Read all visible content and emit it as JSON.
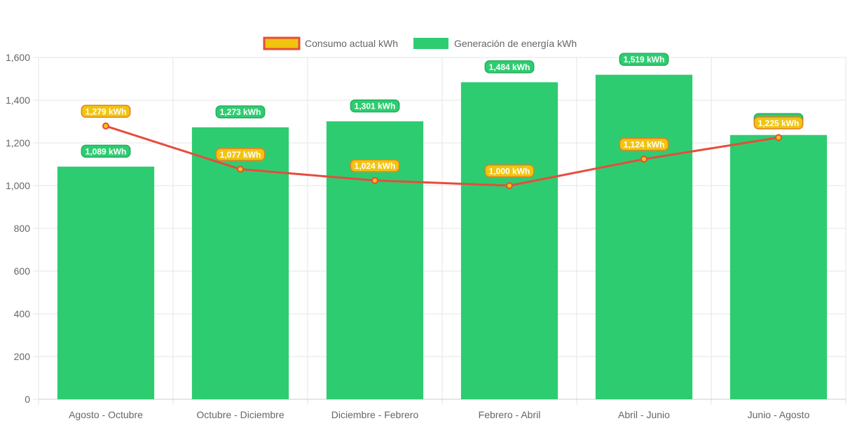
{
  "chart_data": {
    "type": "bar",
    "categories": [
      "Agosto - Octubre",
      "Octubre - Diciembre",
      "Diciembre - Febrero",
      "Febrero - Abril",
      "Abril - Junio",
      "Junio - Agosto"
    ],
    "series": [
      {
        "name": "Consumo actual kWh",
        "type": "line",
        "values": [
          1279,
          1077,
          1024,
          1000,
          1124,
          1225
        ],
        "color": "#e74c3c",
        "marker_fill": "#f1c40f"
      },
      {
        "name": "Generación de energía kWh",
        "type": "bar",
        "values": [
          1089,
          1273,
          1301,
          1484,
          1519,
          1237
        ],
        "color": "#2ecc71"
      }
    ],
    "data_label_unit": "kWh",
    "ylim": [
      0,
      1600
    ],
    "yticks": [
      0,
      200,
      400,
      600,
      800,
      1000,
      1200,
      1400,
      1600
    ],
    "grid": true,
    "legend_position": "top"
  }
}
